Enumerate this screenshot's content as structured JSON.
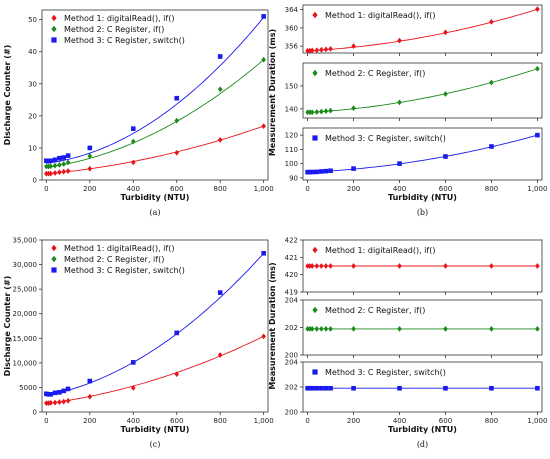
{
  "chart_data": [
    {
      "id": "a",
      "type": "scatter",
      "panel_label": "(a)",
      "xlabel": "Turbidity (NTU)",
      "ylabel": "Discharge Counter (#)",
      "xlim": [
        -20,
        1020
      ],
      "ylim": [
        0,
        53
      ],
      "xticks": [
        0,
        200,
        400,
        600,
        800,
        1000
      ],
      "xtick_labels": [
        "0",
        "200",
        "400",
        "600",
        "800",
        "1,000"
      ],
      "yticks": [
        0,
        10,
        20,
        30,
        40,
        50
      ],
      "ytick_labels": [
        "0",
        "10",
        "20",
        "30",
        "40",
        "50"
      ],
      "legend_position": "top-left",
      "series": [
        {
          "name": "Method 1: digitalRead(), if()",
          "color": "#e8141b",
          "marker": "diamond",
          "x": [
            0,
            10,
            20,
            40,
            60,
            80,
            100,
            200,
            400,
            600,
            800,
            1000
          ],
          "y": [
            2,
            2,
            2,
            2.2,
            2.4,
            2.6,
            2.8,
            3.5,
            5.5,
            8.5,
            12.5,
            16.8
          ],
          "fit": [
            1.9,
            0.0062,
            8.7e-06
          ]
        },
        {
          "name": "Method 2: C Register, if()",
          "color": "#1a8a1a",
          "marker": "diamond",
          "x": [
            0,
            10,
            20,
            40,
            60,
            80,
            100,
            200,
            400,
            600,
            800,
            1000
          ],
          "y": [
            4.2,
            4.2,
            4.3,
            4.5,
            4.7,
            5,
            5.5,
            7.5,
            12,
            18.5,
            28.3,
            37.5
          ],
          "fit": [
            3.9,
            0.0095,
            2.41e-05
          ]
        },
        {
          "name": "Method 3: C Register, switch()",
          "color": "#1a1aee",
          "marker": "square",
          "x": [
            0,
            10,
            20,
            40,
            60,
            80,
            100,
            200,
            400,
            600,
            800,
            1000
          ],
          "y": [
            6,
            5.9,
            6,
            6.3,
            6.8,
            7,
            7.6,
            10,
            16,
            25.5,
            38.5,
            51
          ],
          "fit": [
            5.2,
            0.0085,
            3.7e-05
          ]
        }
      ]
    },
    {
      "id": "b",
      "type": "scatter",
      "panel_label": "(b)",
      "xlabel": "Turbidity (NTU)",
      "ylabel": "Measurement Duration (ms)",
      "xlim": [
        -20,
        1020
      ],
      "xticks": [
        0,
        200,
        400,
        600,
        800,
        1000
      ],
      "xtick_labels": [
        "0",
        "200",
        "400",
        "600",
        "800",
        "1,000"
      ],
      "legend_position": "top-left",
      "subplots": [
        {
          "ylim": [
            354.5,
            365
          ],
          "yticks": [
            356,
            360,
            364
          ],
          "ytick_labels": [
            "356",
            "360",
            "364"
          ],
          "series": {
            "name": "Method 1: digitalRead(), if()",
            "color": "#e8141b",
            "marker": "diamond",
            "x": [
              0,
              10,
              20,
              40,
              60,
              80,
              100,
              200,
              400,
              600,
              800,
              1000
            ],
            "y": [
              355,
              355,
              355.05,
              355.1,
              355.2,
              355.3,
              355.4,
              356,
              357.2,
              359,
              361.3,
              364.1
            ],
            "fit": [
              354.95,
              0.0028,
              6.3e-06
            ]
          }
        },
        {
          "ylim": [
            136,
            160
          ],
          "yticks": [
            140,
            150
          ],
          "ytick_labels": [
            "140",
            "150"
          ],
          "series": {
            "name": "Method 2: C Register, if()",
            "color": "#1a8a1a",
            "marker": "diamond",
            "x": [
              0,
              10,
              20,
              40,
              60,
              80,
              100,
              200,
              400,
              600,
              800,
              1000
            ],
            "y": [
              138.5,
              138.5,
              138.5,
              138.6,
              138.8,
              139,
              139.2,
              140.3,
              142.8,
              146.5,
              151.5,
              157.5
            ],
            "fit": [
              138.4,
              0.0054,
              1.37e-05
            ]
          }
        },
        {
          "ylim": [
            88.5,
            125
          ],
          "yticks": [
            90,
            100,
            110,
            120
          ],
          "ytick_labels": [
            "90",
            "100",
            "110",
            "120"
          ],
          "series": {
            "name": "Method 3: C Register, switch()",
            "color": "#1a1aee",
            "marker": "square",
            "x": [
              0,
              10,
              20,
              40,
              60,
              80,
              100,
              200,
              400,
              600,
              800,
              1000
            ],
            "y": [
              94,
              94,
              94.1,
              94.2,
              94.5,
              94.7,
              95,
              96.5,
              100,
              105,
              112,
              120
            ],
            "fit": [
              93.9,
              0.0073,
              1.88e-05
            ]
          }
        }
      ]
    },
    {
      "id": "c",
      "type": "scatter",
      "panel_label": "(c)",
      "xlabel": "Turbidity (NTU)",
      "ylabel": "Discharge Counter (#)",
      "xlim": [
        -20,
        1020
      ],
      "ylim": [
        0,
        35000
      ],
      "xticks": [
        0,
        200,
        400,
        600,
        800,
        1000
      ],
      "xtick_labels": [
        "0",
        "200",
        "400",
        "600",
        "800",
        "1,000"
      ],
      "yticks": [
        0,
        5000,
        10000,
        15000,
        20000,
        25000,
        30000,
        35000
      ],
      "ytick_labels": [
        "0",
        "5000",
        "10,000",
        "15,000",
        "20,000",
        "25,000",
        "30,000",
        "35,000"
      ],
      "legend_position": "top-left",
      "series": [
        {
          "name": "Method 1: digitalRead(), if()",
          "color": "#e8141b",
          "marker": "diamond",
          "x": [
            0,
            10,
            20,
            40,
            60,
            80,
            100,
            200,
            400,
            600,
            800,
            1000
          ],
          "y": [
            1800,
            1800,
            1850,
            1900,
            2000,
            2100,
            2300,
            3100,
            4900,
            7700,
            11600,
            15400
          ],
          "fit": [
            1700,
            5.8,
            0.0079
          ]
        },
        {
          "name": "Method 2: C Register, if()",
          "color": "#1a8a1a",
          "marker": "diamond",
          "x": [],
          "y": []
        },
        {
          "name": "Method 3: C Register, switch()",
          "color": "#1a1aee",
          "marker": "square",
          "x": [
            0,
            10,
            20,
            40,
            60,
            80,
            100,
            200,
            400,
            600,
            800,
            1000
          ],
          "y": [
            3700,
            3600,
            3600,
            3900,
            4000,
            4300,
            4700,
            6300,
            10100,
            16100,
            24300,
            32300
          ],
          "fit": [
            3300,
            9.0,
            0.02
          ]
        }
      ]
    },
    {
      "id": "d",
      "type": "scatter",
      "panel_label": "(d)",
      "xlabel": "Turbidity (NTU)",
      "ylabel": "Measurement Duration (ms)",
      "xlim": [
        -20,
        1020
      ],
      "xticks": [
        0,
        200,
        400,
        600,
        800,
        1000
      ],
      "xtick_labels": [
        "0",
        "200",
        "400",
        "600",
        "800",
        "1,000"
      ],
      "legend_position": "top-left",
      "subplots": [
        {
          "ylim": [
            419,
            422
          ],
          "yticks": [
            419,
            420,
            421,
            422
          ],
          "ytick_labels": [
            "419",
            "420",
            "421",
            "422"
          ],
          "series": {
            "name": "Method 1: digitalRead(), if()",
            "color": "#e8141b",
            "marker": "diamond",
            "x": [
              0,
              10,
              20,
              40,
              60,
              80,
              100,
              200,
              400,
              600,
              800,
              1000
            ],
            "y": [
              420.5,
              420.5,
              420.5,
              420.5,
              420.5,
              420.5,
              420.5,
              420.5,
              420.5,
              420.5,
              420.5,
              420.5
            ],
            "fit": [
              420.5,
              0,
              0
            ]
          }
        },
        {
          "ylim": [
            200,
            204
          ],
          "yticks": [
            200,
            202,
            204
          ],
          "ytick_labels": [
            "200",
            "202",
            "204"
          ],
          "series": {
            "name": "Method 2: C Register, if()",
            "color": "#1a8a1a",
            "marker": "diamond",
            "x": [
              0,
              10,
              20,
              40,
              60,
              80,
              100,
              200,
              400,
              600,
              800,
              1000
            ],
            "y": [
              201.9,
              201.9,
              201.9,
              201.9,
              201.9,
              201.9,
              201.9,
              201.9,
              201.9,
              201.9,
              201.9,
              201.9
            ],
            "fit": [
              201.9,
              0,
              0
            ]
          }
        },
        {
          "ylim": [
            200,
            204
          ],
          "yticks": [
            200,
            202,
            204
          ],
          "ytick_labels": [
            "200",
            "202",
            "204"
          ],
          "series": {
            "name": "Method 3: C Register, switch()",
            "color": "#1a1aee",
            "marker": "square",
            "x": [
              0,
              10,
              20,
              40,
              60,
              80,
              100,
              200,
              400,
              600,
              800,
              1000
            ],
            "y": [
              201.9,
              201.9,
              201.9,
              201.9,
              201.9,
              201.9,
              201.9,
              201.9,
              201.9,
              201.9,
              201.9,
              201.9
            ],
            "fit": [
              201.9,
              0,
              0
            ]
          }
        }
      ]
    }
  ]
}
